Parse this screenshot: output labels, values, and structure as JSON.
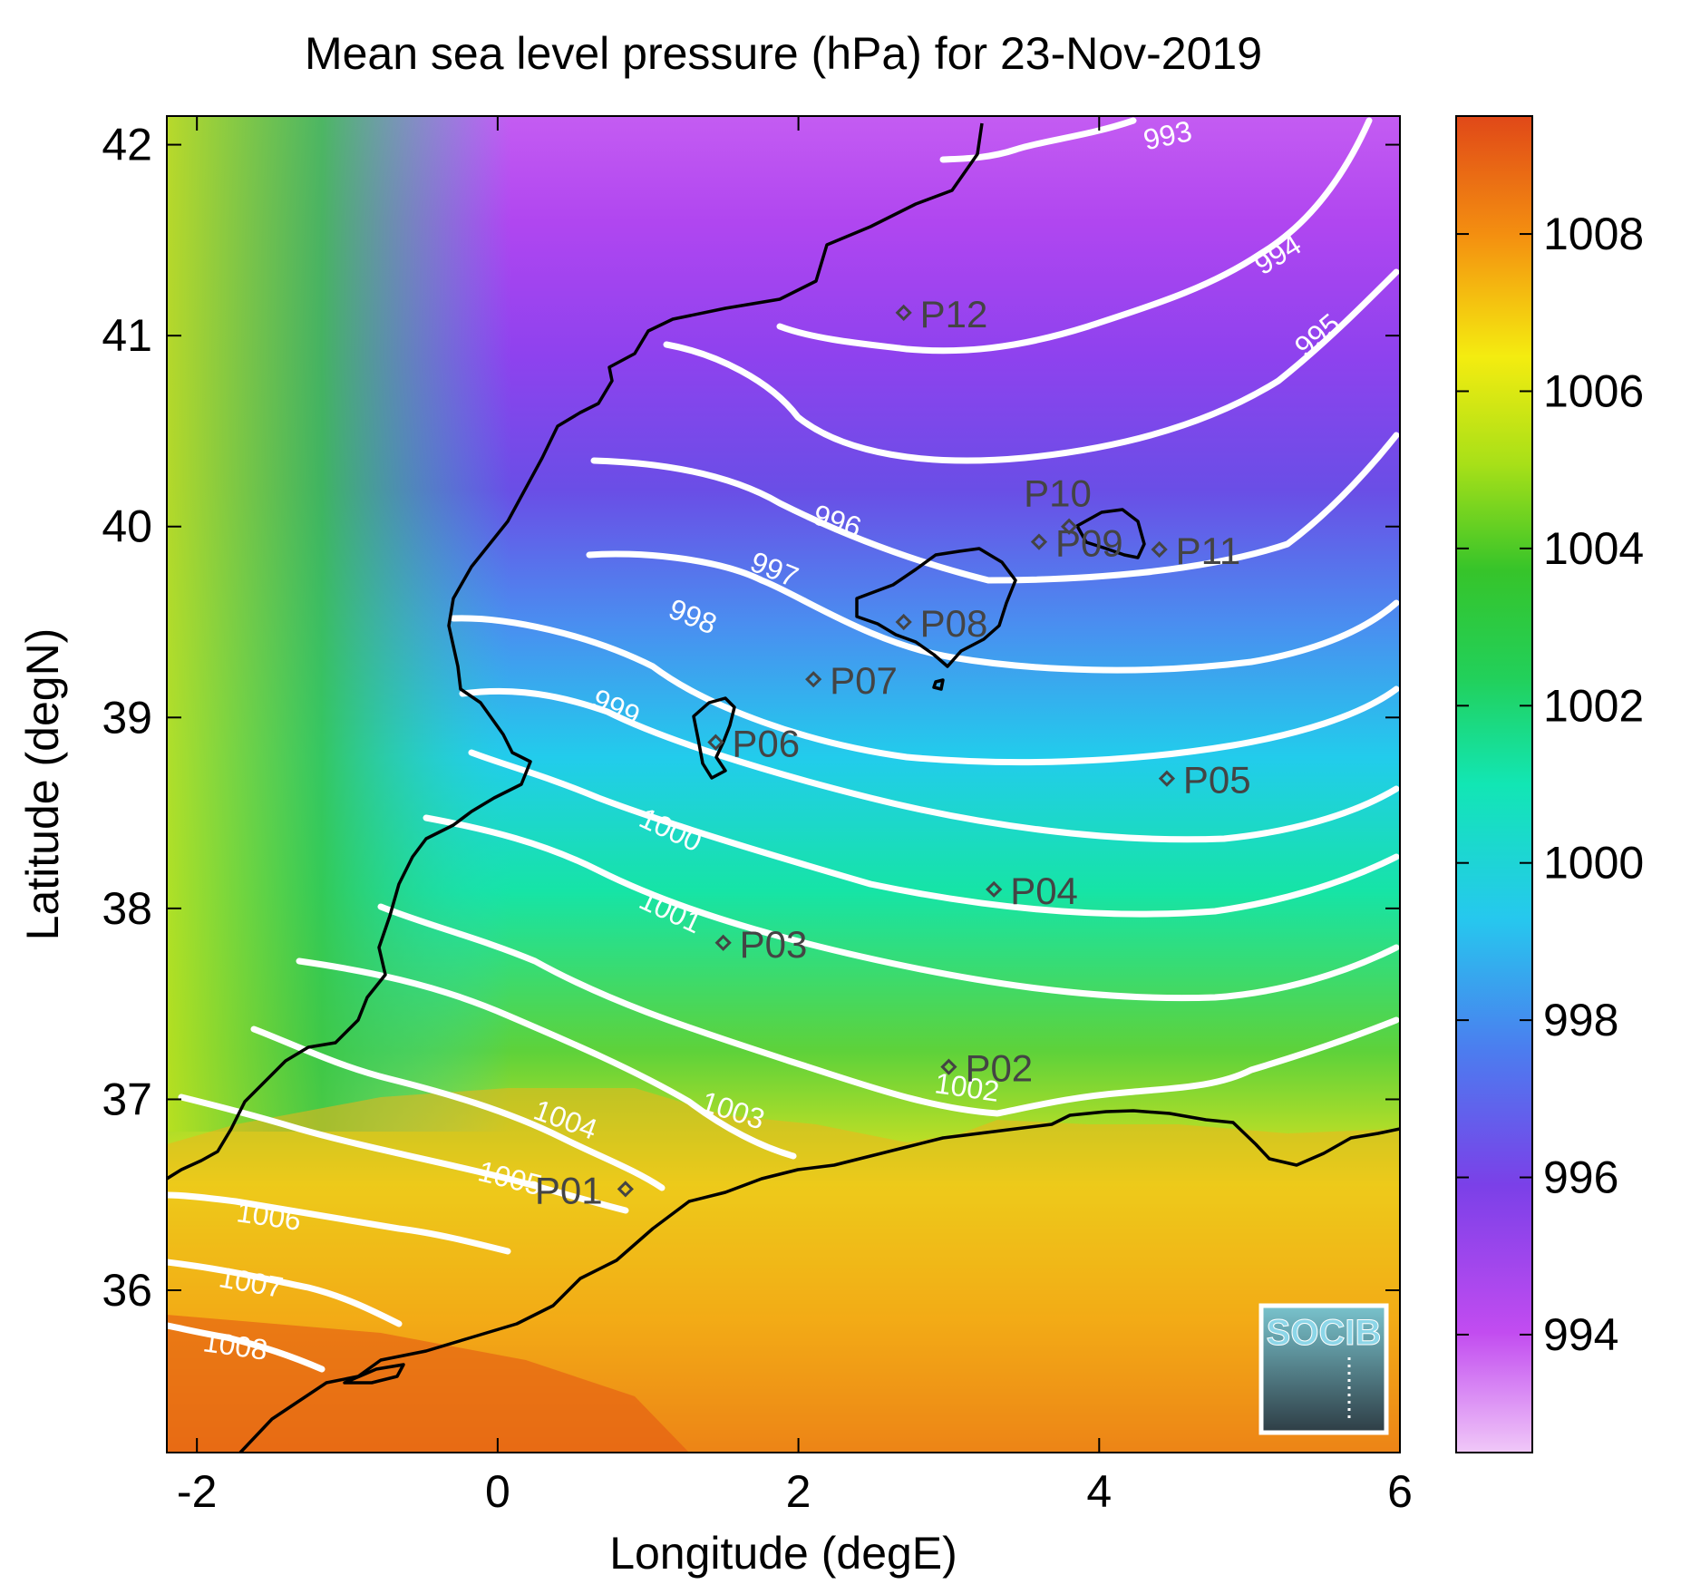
{
  "chart_data": {
    "type": "heatmap",
    "title": "Mean sea level pressure (hPa) for 23-Nov-2019",
    "xlabel": "Longitude (degE)",
    "ylabel": "Latitude (degN)",
    "xlim": [
      -2.2,
      6.0
    ],
    "ylim": [
      35.15,
      42.15
    ],
    "xticks": [
      -2,
      0,
      2,
      4,
      6
    ],
    "yticks": [
      36,
      37,
      38,
      39,
      40,
      41,
      42
    ],
    "colorbar": {
      "range": [
        992.5,
        1009.5
      ],
      "ticks": [
        994,
        996,
        998,
        1000,
        1002,
        1004,
        1006,
        1008
      ],
      "placement": "right"
    },
    "colors": {
      "contour": "#ffffff",
      "coastline": "#000000",
      "station": "#444444",
      "logo_text": "#7fd0e6",
      "logo_bg_top": "#6cb7c4",
      "logo_bg_bottom": "#2f3f47"
    },
    "contour_levels": [
      993,
      994,
      995,
      996,
      997,
      998,
      999,
      1000,
      1001,
      1002,
      1003,
      1004,
      1005,
      1006,
      1007,
      1008
    ],
    "stations": [
      {
        "label": "P01",
        "lon": 0.85,
        "lat": 36.53
      },
      {
        "label": "P02",
        "lon": 3.0,
        "lat": 37.17
      },
      {
        "label": "P03",
        "lon": 1.5,
        "lat": 37.82
      },
      {
        "label": "P04",
        "lon": 3.3,
        "lat": 38.1
      },
      {
        "label": "P05",
        "lon": 4.45,
        "lat": 38.68
      },
      {
        "label": "P06",
        "lon": 1.45,
        "lat": 38.87
      },
      {
        "label": "P07",
        "lon": 2.1,
        "lat": 39.2
      },
      {
        "label": "P08",
        "lon": 2.7,
        "lat": 39.5
      },
      {
        "label": "P09",
        "lon": 3.6,
        "lat": 39.92
      },
      {
        "label": "P10",
        "lon": 3.8,
        "lat": 40.0
      },
      {
        "label": "P11",
        "lon": 4.4,
        "lat": 39.88
      },
      {
        "label": "P12",
        "lon": 2.7,
        "lat": 41.12
      }
    ],
    "logo_text": "SOCIB"
  }
}
